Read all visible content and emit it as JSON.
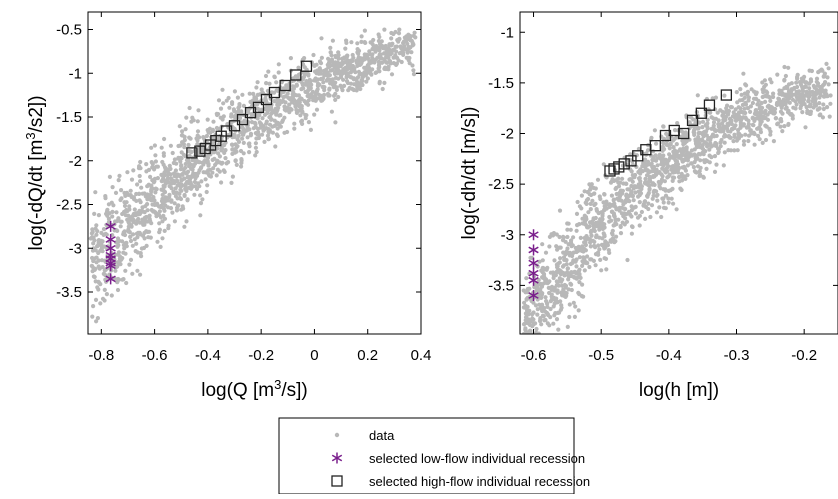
{
  "chart_data": [
    {
      "type": "scatter",
      "title": "",
      "xlabel": "log(Q [m3/s])",
      "ylabel": "log(-dQ/dt [m3/s2])",
      "xlim": [
        -0.85,
        0.4
      ],
      "ylim": [
        -3.98,
        -0.3
      ],
      "x_ticks": [
        "-0.8",
        "-0.6",
        "-0.4",
        "-0.2",
        "0",
        "0.2",
        "0.4"
      ],
      "y_ticks": [
        "-0.5",
        "-1",
        "-1.5",
        "-2",
        "-2.5",
        "-3",
        "-3.5"
      ],
      "grid": false,
      "cloud": {
        "x_min": -0.84,
        "x_max": 0.38,
        "slope": 2.05,
        "intercept": -1.06,
        "curve": -1.1,
        "spread": 0.22
      },
      "series": [
        {
          "name": "selected low-flow individual recession",
          "marker": "asterisk",
          "x": [
            -0.765,
            -0.765,
            -0.765,
            -0.765,
            -0.765,
            -0.765,
            -0.765,
            -0.765
          ],
          "y": [
            -2.75,
            -2.9,
            -3.0,
            -3.08,
            -3.12,
            -3.17,
            -3.2,
            -3.35
          ]
        },
        {
          "name": "selected high-flow individual recession",
          "marker": "square",
          "x": [
            -0.46,
            -0.43,
            -0.41,
            -0.39,
            -0.37,
            -0.35,
            -0.33,
            -0.3,
            -0.27,
            -0.24,
            -0.21,
            -0.18,
            -0.15,
            -0.11,
            -0.07,
            -0.03
          ],
          "y": [
            -1.91,
            -1.89,
            -1.86,
            -1.82,
            -1.77,
            -1.72,
            -1.66,
            -1.6,
            -1.53,
            -1.45,
            -1.39,
            -1.3,
            -1.22,
            -1.14,
            -1.02,
            -0.92
          ]
        }
      ]
    },
    {
      "type": "scatter",
      "title": "",
      "xlabel": "log(h [m])",
      "ylabel": "log(-dh/dt [m/s])",
      "xlim": [
        -0.62,
        -0.15
      ],
      "ylim": [
        -3.98,
        -0.8
      ],
      "x_ticks": [
        "-0.6",
        "-0.5",
        "-0.4",
        "-0.3",
        "-0.2"
      ],
      "y_ticks": [
        "-1",
        "-1.5",
        "-2",
        "-2.5",
        "-3",
        "-3.5"
      ],
      "grid": false,
      "cloud": {
        "x_min": -0.615,
        "x_max": -0.16,
        "slope": 5.0,
        "intercept": -0.3,
        "curve": -9.0,
        "spread": 0.2
      },
      "series": [
        {
          "name": "selected low-flow individual recession",
          "marker": "asterisk",
          "x": [
            -0.6,
            -0.6,
            -0.6,
            -0.6,
            -0.6,
            -0.6
          ],
          "y": [
            -3.0,
            -3.15,
            -3.28,
            -3.38,
            -3.45,
            -3.6
          ]
        },
        {
          "name": "selected high-flow individual recession",
          "marker": "square",
          "x": [
            -0.487,
            -0.481,
            -0.474,
            -0.466,
            -0.456,
            -0.446,
            -0.434,
            -0.42,
            -0.405,
            -0.392,
            -0.378,
            -0.365,
            -0.352,
            -0.34,
            -0.315
          ],
          "y": [
            -2.37,
            -2.35,
            -2.33,
            -2.3,
            -2.27,
            -2.22,
            -2.16,
            -2.12,
            -2.02,
            -1.97,
            -2.0,
            -1.87,
            -1.8,
            -1.72,
            -1.62
          ]
        }
      ]
    }
  ],
  "legend": {
    "placement": "bottom-center",
    "items": [
      {
        "label": "data",
        "marker": "dot",
        "color": "#b8b8b8"
      },
      {
        "label": "selected low-flow individual recession",
        "marker": "asterisk",
        "color": "#7a1f8c"
      },
      {
        "label": "selected high-flow individual recession",
        "marker": "square",
        "color": "#222222"
      }
    ]
  },
  "colors": {
    "data": "#b8b8b8",
    "low_flow": "#7a1f8c",
    "high_flow": "#222222",
    "axes": "#000000"
  }
}
